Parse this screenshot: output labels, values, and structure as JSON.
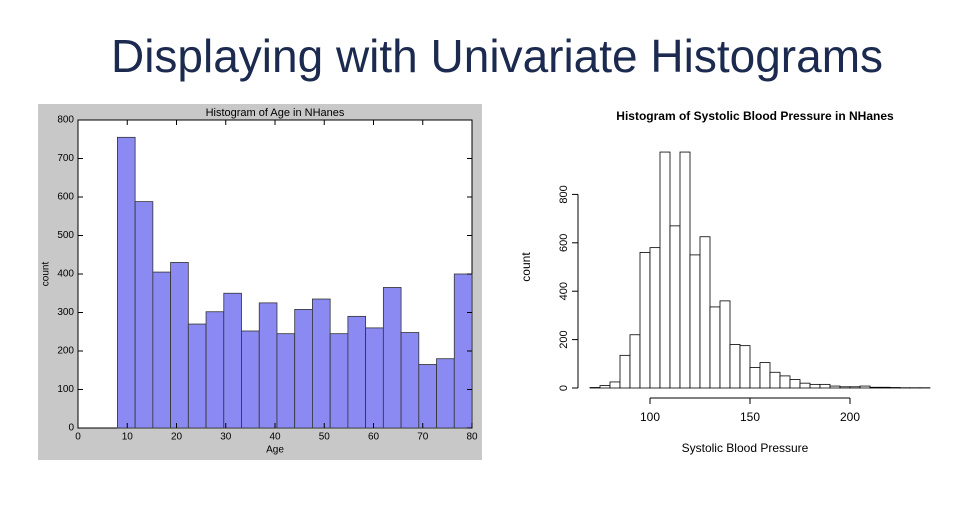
{
  "title": "Displaying with Univariate Histograms",
  "chart_data": [
    {
      "type": "histogram",
      "title": "Histogram of Age in NHanes",
      "xlabel": "Age",
      "ylabel": "count",
      "bins": [
        8,
        11.6,
        15.2,
        18.8,
        22.4,
        26,
        29.6,
        33.2,
        36.8,
        40.4,
        44,
        47.6,
        51.2,
        54.8,
        58.4,
        62,
        65.6,
        69.2,
        72.8,
        76.4,
        80
      ],
      "values": [
        755,
        588,
        405,
        430,
        270,
        302,
        350,
        252,
        325,
        245,
        308,
        335,
        245,
        290,
        260,
        365,
        248,
        165,
        180,
        400
      ],
      "color": "#8a8af2",
      "edgecolor": "#333333",
      "xlim": [
        0,
        80
      ],
      "xticks": [
        0,
        10,
        20,
        30,
        40,
        50,
        60,
        70,
        80
      ],
      "ylim": [
        0,
        800
      ],
      "yticks": [
        0,
        100,
        200,
        300,
        400,
        500,
        600,
        700,
        800
      ]
    },
    {
      "type": "histogram",
      "title": "Histogram of Systolic Blood Pressure in NHanes",
      "xlabel": "Systolic Blood Pressure",
      "ylabel": "count",
      "bins": [
        70,
        75,
        80,
        85,
        90,
        95,
        100,
        105,
        110,
        115,
        120,
        125,
        130,
        135,
        140,
        145,
        150,
        155,
        160,
        165,
        170,
        175,
        180,
        185,
        190,
        195,
        200,
        205,
        210,
        215,
        220,
        225,
        230,
        235,
        240
      ],
      "values": [
        2,
        10,
        25,
        135,
        220,
        560,
        580,
        975,
        670,
        975,
        550,
        625,
        335,
        360,
        180,
        175,
        85,
        105,
        65,
        50,
        35,
        20,
        15,
        15,
        8,
        5,
        5,
        8,
        3,
        3,
        2,
        1,
        1,
        1
      ],
      "color": "#ffffff",
      "edgecolor": "#000000",
      "xlim": [
        60,
        245
      ],
      "xticks": [
        100,
        150,
        200
      ],
      "ylim": [
        0,
        1000
      ],
      "yticks": [
        0,
        200,
        400,
        600,
        800
      ]
    }
  ]
}
